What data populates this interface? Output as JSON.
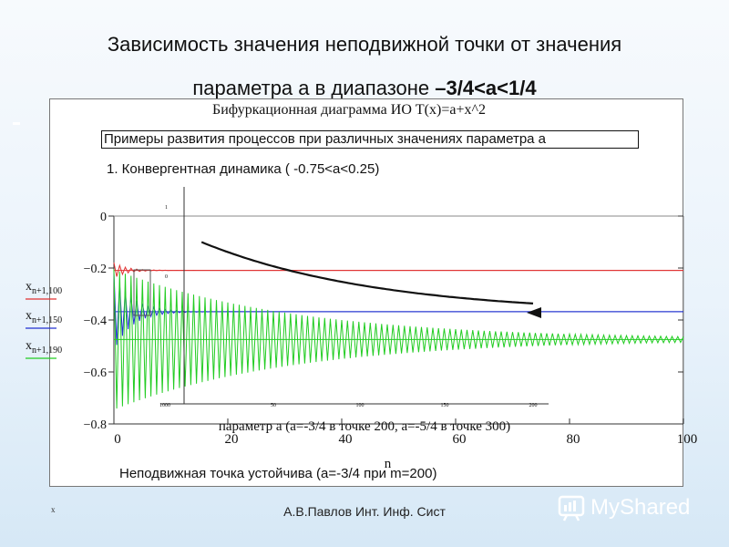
{
  "slide": {
    "title_line1": "Зависимость значения неподвижной точки от значения",
    "title_line2_a": "параметра a в диапазоне ",
    "title_line2_b": "–3/4<a<1/4",
    "footer": "А.В.Павлов Инт. Инф. Сист",
    "small_mark": "x",
    "logo_text": "MyShared"
  },
  "frame": {
    "bif_title": "Бифуркационная диаграмма ИО T(x)=a+x^2",
    "examples": "Примеры развития процессов при различных значениях параметра a",
    "convergent": "1. Конвергентная динамика ( -0.75<a<0.25)",
    "stable_note": "Неподвижная точка устойчива (a=-3/4 при m=200)"
  },
  "chart_data": [
    {
      "type": "line",
      "xlabel": "n",
      "caption": "параметр a (a=-3/4 в точке 200, a=-5/4 в точке 300)",
      "xlim": [
        0,
        100
      ],
      "ylim": [
        -0.8,
        0
      ],
      "xticks": [
        "0",
        "20",
        "40",
        "60",
        "80",
        "100"
      ],
      "yticks": [
        "0",
        "−0.2",
        "−0.4",
        "−0.6",
        "−0.8"
      ],
      "series": [
        {
          "name": "x n+1,100",
          "color": "#e03030",
          "fixed_point": -0.209,
          "amplitude": 0.03,
          "decay": 0.45,
          "period": 2
        },
        {
          "name": "x n+1,150",
          "color": "#2030d0",
          "fixed_point": -0.368,
          "amplitude": 0.15,
          "decay": 0.32,
          "period": 2
        },
        {
          "name": "x n+1,190",
          "color": "#22cc22",
          "fixed_point": -0.475,
          "amplitude": 0.27,
          "decay": 0.032,
          "period": 2
        }
      ]
    },
    {
      "type": "line",
      "description": "inset",
      "xticks": [
        "1000",
        "50",
        "100",
        "150",
        "200"
      ],
      "yticks": [
        "1",
        "0"
      ],
      "x": [
        10,
        200
      ],
      "y": [
        -0.1,
        -0.375
      ]
    }
  ]
}
